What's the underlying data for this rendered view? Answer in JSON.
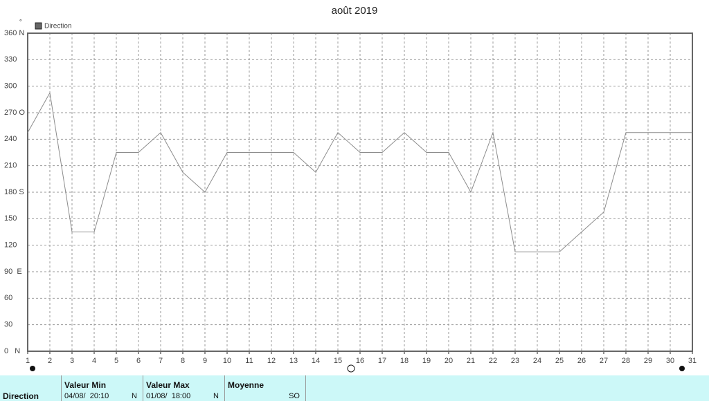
{
  "chart_data": {
    "type": "line",
    "title": "août 2019",
    "y_axis_label": "°",
    "x": [
      1,
      2,
      3,
      4,
      5,
      6,
      7,
      8,
      9,
      10,
      11,
      12,
      13,
      14,
      15,
      16,
      17,
      18,
      19,
      20,
      21,
      22,
      23,
      24,
      25,
      26,
      27,
      28,
      29,
      30,
      31
    ],
    "xlim": [
      1,
      31
    ],
    "xticks": [
      1,
      2,
      3,
      4,
      5,
      6,
      7,
      8,
      9,
      10,
      11,
      12,
      13,
      14,
      15,
      16,
      17,
      18,
      19,
      20,
      21,
      22,
      23,
      24,
      25,
      26,
      27,
      28,
      29,
      30,
      31
    ],
    "ylim": [
      0,
      360
    ],
    "yticks": [
      {
        "value": 0,
        "label": "0   N"
      },
      30,
      60,
      {
        "value": 90,
        "label": "90  E"
      },
      120,
      150,
      {
        "value": 180,
        "label": "180 S"
      },
      210,
      240,
      {
        "value": 270,
        "label": "270 O"
      },
      300,
      330,
      {
        "value": 360,
        "label": "360 N"
      }
    ],
    "grid": true,
    "series": [
      {
        "name": "Direction",
        "color": "#8c8c8c",
        "values": [
          247.5,
          292.5,
          135,
          135,
          225,
          225,
          247.5,
          202.5,
          180,
          225,
          225,
          225,
          225,
          202.5,
          247.5,
          225,
          225,
          247.5,
          225,
          225,
          180,
          247.5,
          112.5,
          112.5,
          112.5,
          135,
          157.5,
          247.5,
          247.5,
          247.5,
          247.5
        ]
      }
    ]
  },
  "summary": {
    "row_label": "Direction",
    "columns": [
      {
        "header": "Valeur Min",
        "date": "04/08/  20:10",
        "value": "N"
      },
      {
        "header": "Valeur Max",
        "date": "01/08/  18:00",
        "value": "N"
      },
      {
        "header": "Moyenne",
        "value": "SO"
      }
    ]
  }
}
